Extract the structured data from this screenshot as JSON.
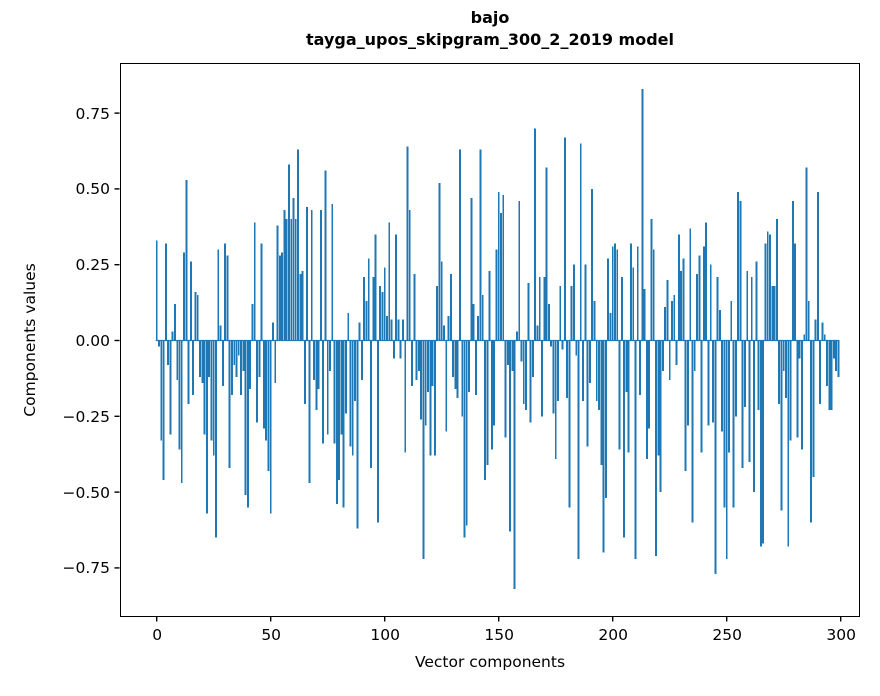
{
  "figure": {
    "background": "#ffffff",
    "text_color": "#000000",
    "spine_color": "#000000"
  },
  "chart_data": {
    "type": "bar",
    "title": "bajo",
    "subtitle": "tayga_upos_skipgram_300_2_2019 model",
    "xlabel": "Vector components",
    "ylabel": "Components values",
    "legend": "none",
    "grid": false,
    "bar_color": "#1f77b4",
    "n_components": 300,
    "xlim": [
      -16,
      309
    ],
    "ylim": [
      -0.91,
      0.92
    ],
    "x_tick_values": [
      0,
      50,
      100,
      150,
      200,
      250,
      300
    ],
    "x_tick_labels": [
      "0",
      "50",
      "100",
      "150",
      "200",
      "250",
      "300"
    ],
    "y_tick_values": [
      0.75,
      0.5,
      0.25,
      0.0,
      -0.25,
      -0.5,
      -0.75
    ],
    "y_tick_labels": [
      "0.75",
      "0.50",
      "0.25",
      "0.00",
      "−0.25",
      "−0.50",
      "−0.75"
    ],
    "values": [
      0.33,
      -0.02,
      -0.33,
      -0.46,
      0.32,
      -0.08,
      -0.31,
      0.03,
      0.12,
      -0.13,
      -0.36,
      -0.47,
      0.29,
      0.53,
      -0.21,
      0.26,
      -0.18,
      0.16,
      0.15,
      -0.12,
      -0.14,
      -0.31,
      -0.57,
      -0.12,
      -0.33,
      -0.38,
      -0.65,
      0.3,
      0.05,
      -0.15,
      0.32,
      0.28,
      -0.42,
      -0.18,
      -0.08,
      -0.12,
      -0.05,
      -0.18,
      -0.1,
      -0.51,
      -0.55,
      -0.16,
      0.12,
      0.39,
      -0.27,
      -0.12,
      0.32,
      -0.29,
      -0.33,
      -0.43,
      -0.57,
      0.06,
      -0.14,
      0.38,
      0.28,
      0.29,
      0.43,
      0.4,
      0.58,
      0.4,
      0.47,
      0.4,
      0.63,
      0.22,
      0.23,
      -0.21,
      0.44,
      -0.47,
      0.43,
      -0.13,
      -0.23,
      -0.16,
      0.43,
      -0.34,
      0.56,
      -0.31,
      -0.1,
      0.45,
      -0.34,
      -0.54,
      -0.46,
      -0.31,
      -0.55,
      -0.24,
      0.09,
      -0.35,
      -0.38,
      -0.2,
      -0.62,
      0.06,
      -0.13,
      0.21,
      0.13,
      0.27,
      -0.42,
      0.21,
      0.35,
      -0.6,
      0.18,
      0.16,
      0.24,
      0.08,
      0.39,
      0.07,
      -0.06,
      0.35,
      0.07,
      -0.06,
      0.07,
      -0.37,
      0.64,
      0.43,
      -0.15,
      0.22,
      -0.13,
      -0.1,
      -0.26,
      -0.72,
      -0.28,
      -0.17,
      -0.38,
      -0.15,
      -0.38,
      0.18,
      0.52,
      0.26,
      0.05,
      -0.3,
      0.08,
      0.22,
      -0.12,
      -0.16,
      -0.19,
      0.63,
      -0.25,
      -0.65,
      -0.61,
      -0.17,
      0.47,
      0.12,
      -0.18,
      0.08,
      0.63,
      0.15,
      -0.46,
      -0.41,
      0.23,
      -0.36,
      -0.28,
      0.3,
      0.49,
      0.42,
      0.48,
      -0.32,
      -0.08,
      -0.63,
      -0.1,
      -0.82,
      0.03,
      0.46,
      -0.07,
      -0.21,
      -0.23,
      0.19,
      -0.27,
      -0.12,
      0.7,
      0.05,
      0.21,
      -0.25,
      0.21,
      0.57,
      0.12,
      -0.02,
      -0.24,
      -0.39,
      -0.2,
      0.18,
      -0.03,
      0.67,
      -0.19,
      -0.55,
      0.18,
      0.25,
      -0.05,
      -0.72,
      0.65,
      -0.2,
      0.25,
      -0.35,
      -0.14,
      0.5,
      0.13,
      -0.2,
      -0.23,
      -0.41,
      -0.7,
      -0.52,
      0.27,
      0.09,
      0.31,
      0.32,
      0.3,
      -0.36,
      0.21,
      -0.65,
      -0.17,
      -0.37,
      0.32,
      0.24,
      -0.72,
      0.31,
      -0.18,
      0.83,
      0.17,
      -0.39,
      -0.29,
      0.4,
      0.3,
      -0.71,
      -0.38,
      -0.5,
      -0.1,
      0.11,
      0.2,
      -0.13,
      0.13,
      0.15,
      -0.08,
      0.35,
      0.23,
      0.27,
      -0.43,
      -0.28,
      0.37,
      -0.6,
      -0.1,
      0.22,
      0.28,
      -0.37,
      0.31,
      0.39,
      -0.28,
      0.25,
      -0.27,
      -0.77,
      0.21,
      0.1,
      -0.3,
      -0.55,
      -0.72,
      -0.37,
      0.13,
      -0.55,
      -0.25,
      0.49,
      0.46,
      -0.42,
      -0.22,
      0.23,
      -0.4,
      0.21,
      -0.5,
      0.26,
      -0.23,
      -0.68,
      -0.67,
      0.32,
      0.36,
      0.35,
      0.18,
      0.18,
      0.4,
      -0.21,
      -0.56,
      -0.1,
      -0.19,
      -0.68,
      -0.33,
      0.46,
      0.32,
      -0.32,
      -0.06,
      -0.36,
      0.02,
      0.57,
      0.13,
      -0.6,
      -0.45,
      0.07,
      0.49,
      -0.21,
      0.06,
      0.02,
      -0.15,
      -0.23,
      -0.23,
      -0.06,
      -0.1,
      -0.12
    ]
  }
}
